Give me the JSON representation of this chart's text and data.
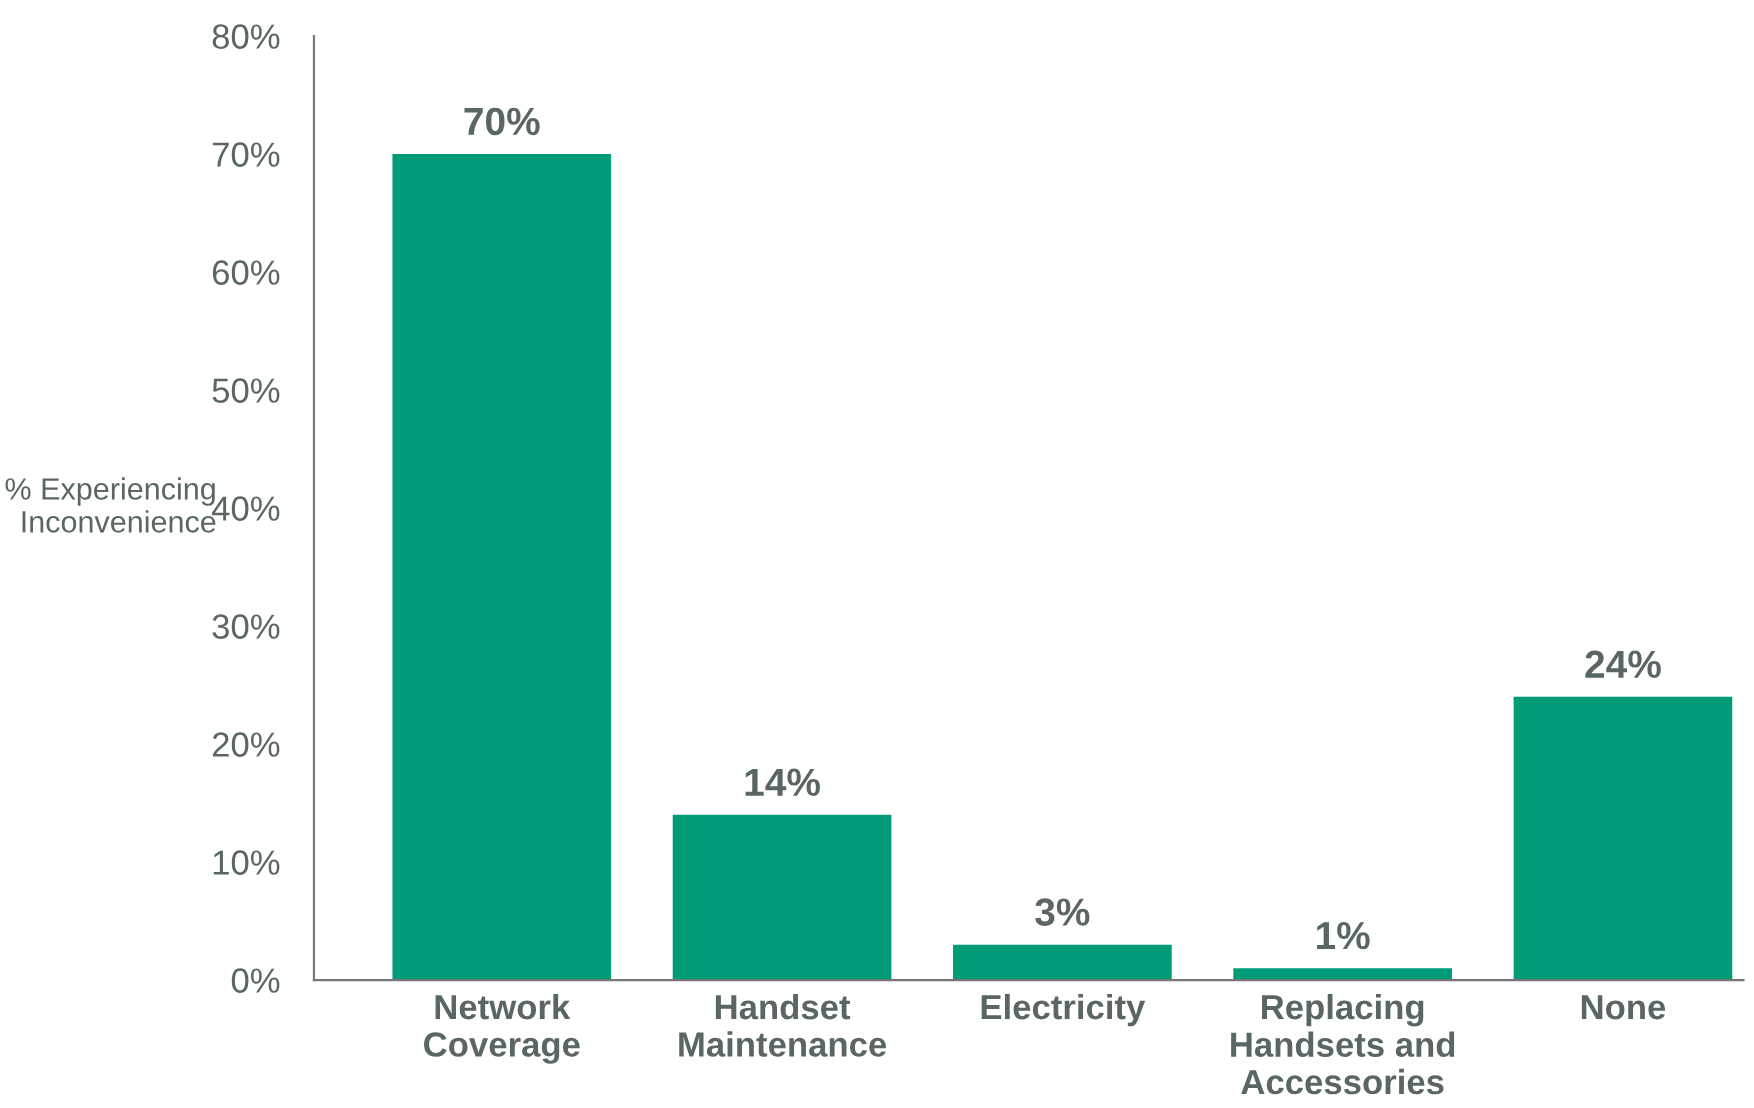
{
  "chart_data": {
    "type": "bar",
    "ylabel": "% Experiencing\nInconvenience",
    "categories": [
      "Network\nCoverage",
      "Handset\nMaintenance",
      "Electricity",
      "Replacing\nHandsets and\nAccessories",
      "None"
    ],
    "values": [
      70,
      14,
      3,
      1,
      24
    ],
    "color": "#009b77",
    "value_labels": [
      "70%",
      "14%",
      "3%",
      "1%",
      "24%"
    ],
    "ylim": [
      0,
      80
    ],
    "yticks": [
      {
        "value": 0,
        "label": "0%"
      },
      {
        "value": 10,
        "label": "10%"
      },
      {
        "value": 20,
        "label": "20%"
      },
      {
        "value": 30,
        "label": "30%"
      },
      {
        "value": 40,
        "label": "40%"
      },
      {
        "value": 50,
        "label": "50%"
      },
      {
        "value": 60,
        "label": "60%"
      },
      {
        "value": 70,
        "label": "70%"
      },
      {
        "value": 80,
        "label": "80%"
      }
    ],
    "grid": false
  }
}
